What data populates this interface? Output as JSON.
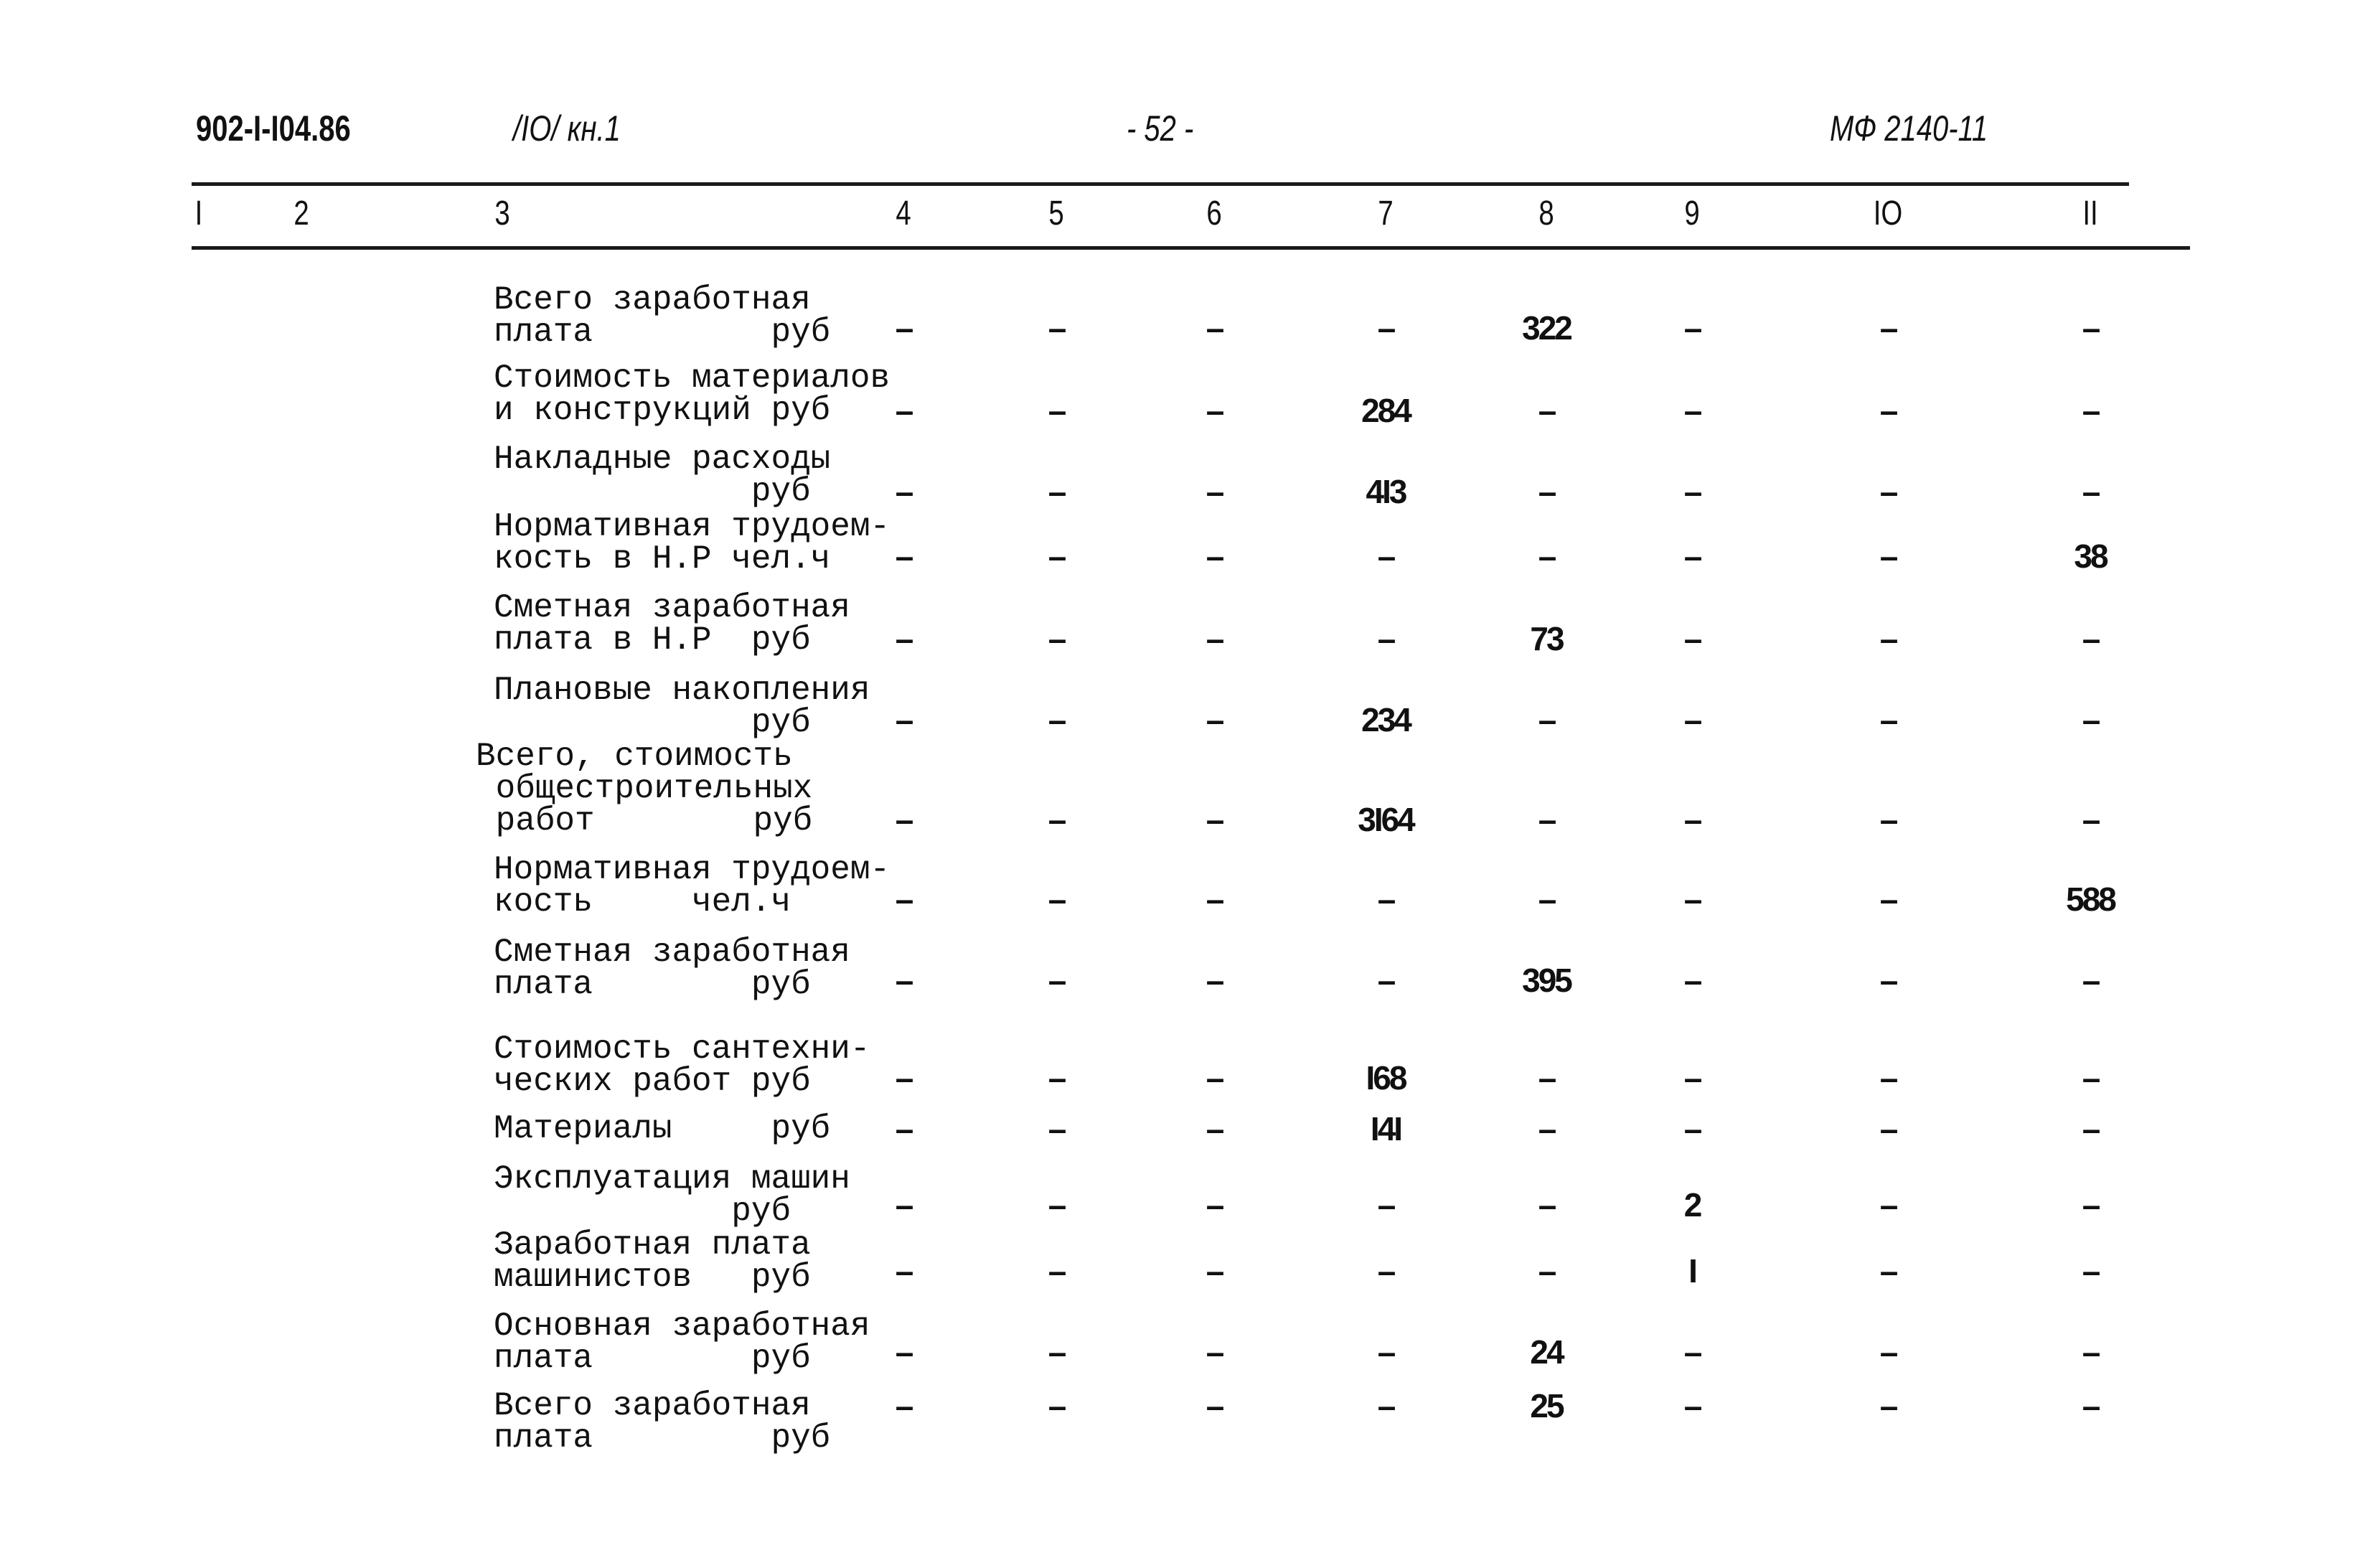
{
  "header": {
    "doc_code": "902-I-I04.86",
    "volume": "/IO/ кн.1",
    "page": "- 52 -",
    "registry": "МФ 2140-11"
  },
  "columns": [
    "I",
    "2",
    "3",
    "4",
    "5",
    "6",
    "7",
    "8",
    "9",
    "IO",
    "II"
  ],
  "rows": [
    {
      "label": [
        "Всего заработная",
        "плата         руб"
      ],
      "values": [
        "–",
        "–",
        "–",
        "–",
        "322",
        "–",
        "–",
        "–"
      ]
    },
    {
      "label": [
        "Стоимость материалов",
        "и конструкций руб"
      ],
      "values": [
        "–",
        "–",
        "–",
        "284",
        "–",
        "–",
        "–",
        "–"
      ]
    },
    {
      "label": [
        "Накладные расходы",
        "             руб"
      ],
      "values": [
        "–",
        "–",
        "–",
        "4I3",
        "–",
        "–",
        "–",
        "–"
      ]
    },
    {
      "label": [
        "Нормативная трудоем-",
        "кость в Н.Р чел.ч"
      ],
      "values": [
        "–",
        "–",
        "–",
        "–",
        "–",
        "–",
        "–",
        "38"
      ]
    },
    {
      "label": [
        "Сметная заработная",
        "плата в Н.Р  руб"
      ],
      "values": [
        "–",
        "–",
        "–",
        "–",
        "73",
        "–",
        "–",
        "–"
      ]
    },
    {
      "label": [
        "Плановые накопления",
        "             руб"
      ],
      "values": [
        "–",
        "–",
        "–",
        "234",
        "–",
        "–",
        "–",
        "–"
      ]
    },
    {
      "label": [
        "Всего, стоимость",
        " общестроительных",
        " работ        руб"
      ],
      "values": [
        "–",
        "–",
        "–",
        "3I64",
        "–",
        "–",
        "–",
        "–"
      ]
    },
    {
      "label": [
        "Нормативная трудоем-",
        "кость     чел.ч"
      ],
      "values": [
        "–",
        "–",
        "–",
        "–",
        "–",
        "–",
        "–",
        "588"
      ]
    },
    {
      "label": [
        "Сметная заработная",
        "плата        руб"
      ],
      "values": [
        "–",
        "–",
        "–",
        "–",
        "395",
        "–",
        "–",
        "–"
      ]
    },
    {
      "label": [
        "Стоимость сантехни-",
        "ческих работ руб"
      ],
      "values": [
        "–",
        "–",
        "–",
        "I68",
        "–",
        "–",
        "–",
        "–"
      ]
    },
    {
      "label": [
        "Материалы     руб"
      ],
      "values": [
        "–",
        "–",
        "–",
        "I4I",
        "–",
        "–",
        "–",
        "–"
      ]
    },
    {
      "label": [
        "Эксплуатация машин",
        "            руб"
      ],
      "values": [
        "–",
        "–",
        "–",
        "–",
        "–",
        "2",
        "–",
        "–"
      ]
    },
    {
      "label": [
        "Заработная плата",
        "машинистов   руб"
      ],
      "values": [
        "–",
        "–",
        "–",
        "–",
        "–",
        "I",
        "–",
        "–"
      ]
    },
    {
      "label": [
        "Основная заработная",
        "плата        руб"
      ],
      "values": [
        "–",
        "–",
        "–",
        "–",
        "24",
        "–",
        "–",
        "–"
      ]
    },
    {
      "label": [
        "Всего заработная",
        "плата         руб"
      ],
      "values": [
        "–",
        "–",
        "–",
        "–",
        "25",
        "–",
        "–",
        "–"
      ]
    }
  ]
}
